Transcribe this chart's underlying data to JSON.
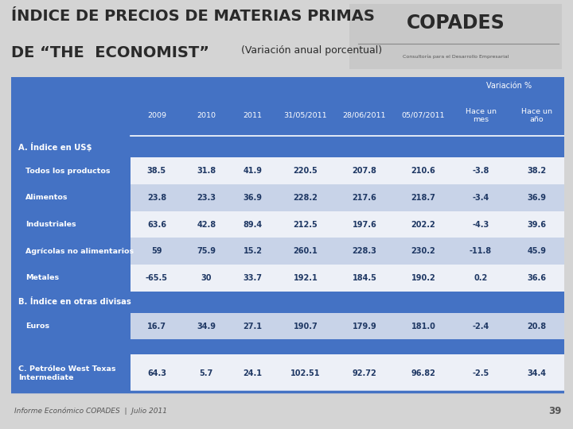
{
  "title_line1": "ÍNDICE DE PRECIOS DE MATERIAS PRIMAS",
  "title_line2": "DE “THE  ECONOMIST”",
  "title_line2_small": " (Variación anual porcentual)",
  "bg_color": "#d4d4d4",
  "header_bg": "#4472c4",
  "section_bg": "#4472c4",
  "row_light": "#edf0f7",
  "row_dark": "#c8d3e8",
  "text_dark": "#1f3864",
  "footer_text": "Informe Económico COPADES  |  Julio 2011",
  "page_num": "39",
  "col_headers": [
    "2009",
    "2010",
    "2011",
    "31/05/2011",
    "28/06/2011",
    "05/07/2011",
    "Hace un\nmes",
    "Hace un\naño"
  ],
  "variacion_label": "Variación %",
  "rows": [
    {
      "label": "A. Índice en US$",
      "indent": false,
      "section": true,
      "values": []
    },
    {
      "label": "Todos los productos",
      "indent": true,
      "section": false,
      "values": [
        "38.5",
        "31.8",
        "41.9",
        "220.5",
        "207.8",
        "210.6",
        "-3.8",
        "38.2"
      ]
    },
    {
      "label": "Alimentos",
      "indent": true,
      "section": false,
      "values": [
        "23.8",
        "23.3",
        "36.9",
        "228.2",
        "217.6",
        "218.7",
        "-3.4",
        "36.9"
      ]
    },
    {
      "label": "Industriales",
      "indent": true,
      "section": false,
      "values": [
        "63.6",
        "42.8",
        "89.4",
        "212.5",
        "197.6",
        "202.2",
        "-4.3",
        "39.6"
      ]
    },
    {
      "label": "Agrícolas no alimentarios",
      "indent": true,
      "section": false,
      "values": [
        "59",
        "75.9",
        "15.2",
        "260.1",
        "228.3",
        "230.2",
        "-11.8",
        "45.9"
      ]
    },
    {
      "label": "Metales",
      "indent": true,
      "section": false,
      "values": [
        "-65.5",
        "30",
        "33.7",
        "192.1",
        "184.5",
        "190.2",
        "0.2",
        "36.6"
      ]
    },
    {
      "label": "B. Índice en otras divisas",
      "indent": false,
      "section": true,
      "values": []
    },
    {
      "label": "Euros",
      "indent": true,
      "section": false,
      "values": [
        "16.7",
        "34.9",
        "27.1",
        "190.7",
        "179.9",
        "181.0",
        "-2.4",
        "20.8"
      ]
    },
    {
      "label": "",
      "indent": false,
      "section": true,
      "values": []
    },
    {
      "label": "C. Petróleo West Texas\nIntermediate",
      "indent": false,
      "section": false,
      "values": [
        "64.3",
        "5.7",
        "24.1",
        "102.51",
        "92.72",
        "96.82",
        "-2.5",
        "34.4"
      ]
    }
  ]
}
